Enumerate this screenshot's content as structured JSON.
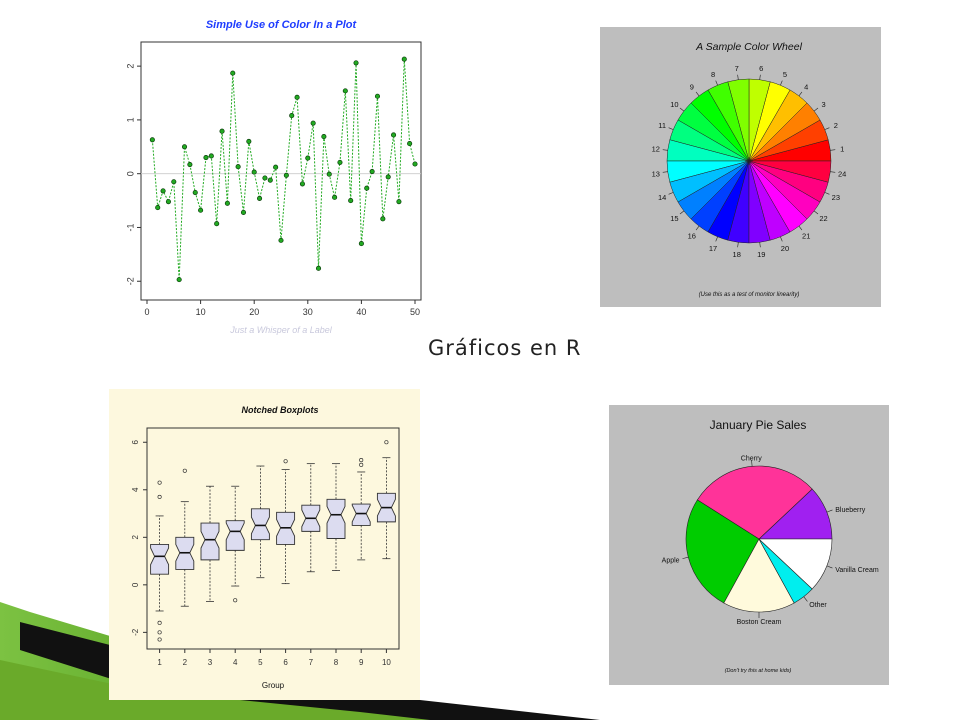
{
  "slide": {
    "caption": "Gráficos en R"
  },
  "colors": {
    "scatter_line": "#22aa22",
    "wheel_bg": "#bebebe",
    "box_bg": "#fdf8de",
    "box_fill": "#dcdcf0",
    "pie_bg": "#bebebe",
    "ribbon_green": "#5a9a1a",
    "ribbon_black": "#111111"
  },
  "chart_data": [
    {
      "type": "line",
      "title": "Simple Use of Color In a Plot",
      "xlabel": "Just a Whisper of a Label",
      "ylabel": "",
      "xlim": [
        0,
        50
      ],
      "ylim": [
        -2.2,
        2.3
      ],
      "x_ticks": [
        0,
        10,
        20,
        30,
        40,
        50
      ],
      "y_ticks": [
        -2,
        -1,
        0,
        1,
        2
      ],
      "x_tick_labels": [
        "0",
        "10",
        "20",
        "30",
        "40",
        "50"
      ],
      "y_tick_labels": [
        "-2",
        "-1",
        "0",
        "1",
        "2"
      ],
      "reference_line_y": 0,
      "series": [
        {
          "x": [
            1,
            2,
            3,
            4,
            5,
            6,
            7,
            8,
            9,
            10,
            11,
            12,
            13,
            14,
            15,
            16,
            17,
            18,
            19,
            20,
            21,
            22,
            23,
            24,
            25,
            26,
            27,
            28,
            29,
            30,
            31,
            32,
            33,
            34,
            35,
            36,
            37,
            38,
            39,
            40,
            41,
            42,
            43,
            44,
            45,
            46,
            47,
            48,
            49,
            50
          ],
          "values": [
            0.63,
            -0.63,
            -0.32,
            -0.52,
            -0.15,
            -1.97,
            0.5,
            0.17,
            -0.35,
            -0.68,
            0.3,
            0.33,
            -0.93,
            0.79,
            -0.55,
            1.87,
            0.13,
            -0.72,
            0.6,
            0.03,
            -0.46,
            -0.08,
            -0.12,
            0.12,
            -1.24,
            -0.03,
            1.08,
            1.42,
            -0.19,
            0.29,
            0.94,
            -1.76,
            0.69,
            -0.01,
            -0.44,
            0.21,
            1.54,
            -0.5,
            2.06,
            -1.3,
            -0.27,
            0.04,
            1.44,
            -0.84,
            -0.06,
            0.72,
            -0.52,
            2.13,
            0.56,
            0.18
          ]
        }
      ]
    },
    {
      "type": "pie",
      "title": "A Sample Color Wheel",
      "note": "(Use this as a test of monitor linearity)",
      "slice_labels": [
        "1",
        "2",
        "3",
        "4",
        "5",
        "6",
        "7",
        "8",
        "9",
        "10",
        "11",
        "12",
        "13",
        "14",
        "15",
        "16",
        "17",
        "18",
        "19",
        "20",
        "21",
        "22",
        "23",
        "24"
      ],
      "values": [
        1,
        1,
        1,
        1,
        1,
        1,
        1,
        1,
        1,
        1,
        1,
        1,
        1,
        1,
        1,
        1,
        1,
        1,
        1,
        1,
        1,
        1,
        1,
        1
      ],
      "colors": "rainbow(24)"
    },
    {
      "type": "box",
      "title": "Notched Boxplots",
      "xlabel": "Group",
      "ylabel": "",
      "ylim": [
        -2.7,
        6.6
      ],
      "y_ticks": [
        -2,
        0,
        2,
        4,
        6
      ],
      "y_tick_labels": [
        "-2",
        "0",
        "2",
        "4",
        "6"
      ],
      "categories": [
        "1",
        "2",
        "3",
        "4",
        "5",
        "6",
        "7",
        "8",
        "9",
        "10"
      ],
      "boxes": [
        {
          "whisker_low": -1.1,
          "q1": 0.45,
          "median": 1.2,
          "q3": 1.7,
          "whisker_high": 2.9,
          "outliers": [
            -1.6,
            -2.0,
            -2.3,
            3.7,
            4.3
          ]
        },
        {
          "whisker_low": -0.9,
          "q1": 0.65,
          "median": 1.35,
          "q3": 2.0,
          "whisker_high": 3.5,
          "outliers": [
            4.8
          ]
        },
        {
          "whisker_low": -0.7,
          "q1": 1.05,
          "median": 1.9,
          "q3": 2.6,
          "whisker_high": 4.15,
          "outliers": []
        },
        {
          "whisker_low": -0.05,
          "q1": 1.45,
          "median": 2.25,
          "q3": 2.7,
          "whisker_high": 4.15,
          "outliers": [
            -0.65
          ]
        },
        {
          "whisker_low": 0.3,
          "q1": 1.9,
          "median": 2.5,
          "q3": 3.2,
          "whisker_high": 5.0,
          "outliers": []
        },
        {
          "whisker_low": 0.05,
          "q1": 1.7,
          "median": 2.4,
          "q3": 3.05,
          "whisker_high": 4.85,
          "outliers": [
            5.2
          ]
        },
        {
          "whisker_low": 0.55,
          "q1": 2.25,
          "median": 2.8,
          "q3": 3.35,
          "whisker_high": 5.1,
          "outliers": []
        },
        {
          "whisker_low": 0.6,
          "q1": 1.95,
          "median": 2.95,
          "q3": 3.6,
          "whisker_high": 5.1,
          "outliers": []
        },
        {
          "whisker_low": 1.05,
          "q1": 2.5,
          "median": 3.0,
          "q3": 3.4,
          "whisker_high": 4.75,
          "outliers": [
            5.05,
            5.25
          ]
        },
        {
          "whisker_low": 1.1,
          "q1": 2.65,
          "median": 3.25,
          "q3": 3.85,
          "whisker_high": 5.35,
          "outliers": [
            6.0
          ]
        }
      ]
    },
    {
      "type": "pie",
      "title": "January Pie Sales",
      "note": "(Don't try this at home kids)",
      "slices": [
        {
          "name": "Blueberry",
          "value": 0.12,
          "color": "#a020f0"
        },
        {
          "name": "Cherry",
          "value": 0.29,
          "color": "#ff3399"
        },
        {
          "name": "Apple",
          "value": 0.26,
          "color": "#00cc00"
        },
        {
          "name": "Boston Cream",
          "value": 0.16,
          "color": "#fffadc"
        },
        {
          "name": "Other",
          "value": 0.05,
          "color": "#00eeee"
        },
        {
          "name": "Vanilla Cream",
          "value": 0.12,
          "color": "#ffffff"
        }
      ]
    }
  ]
}
